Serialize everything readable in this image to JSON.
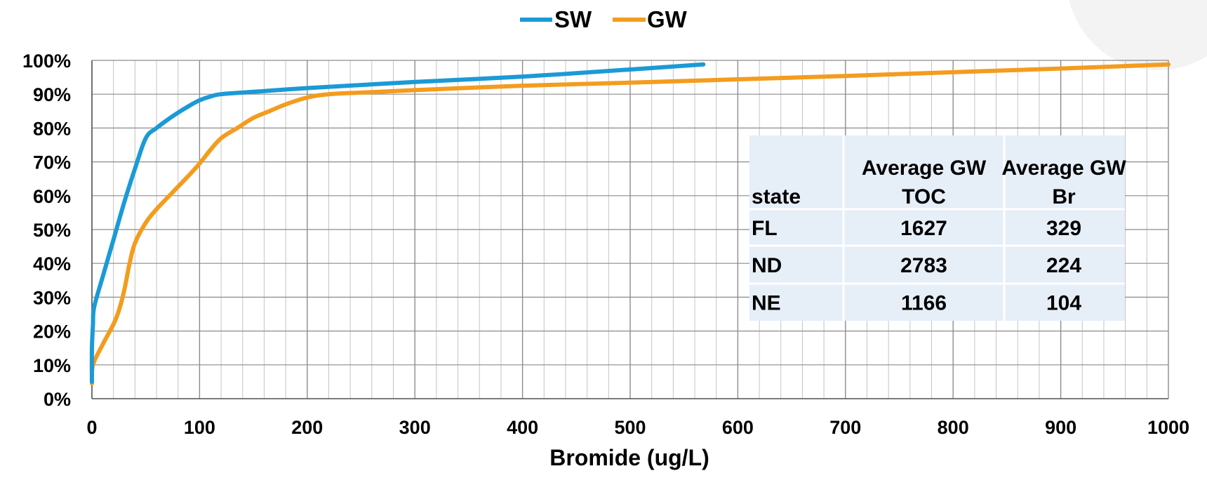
{
  "chart_data": {
    "type": "line",
    "title": "",
    "xlabel": "Bromide (ug/L)",
    "ylabel": "",
    "xlim": [
      0,
      1000
    ],
    "ylim": [
      0,
      100
    ],
    "x_ticks": [
      "0",
      "100",
      "200",
      "300",
      "400",
      "500",
      "600",
      "700",
      "800",
      "900",
      "1000"
    ],
    "y_ticks": [
      "0%",
      "10%",
      "20%",
      "30%",
      "40%",
      "50%",
      "60%",
      "70%",
      "80%",
      "90%",
      "100%"
    ],
    "grid": true,
    "legend_position": "top-center",
    "series": [
      {
        "name": "SW",
        "color": "#1B9AD6",
        "points": [
          [
            0,
            5
          ],
          [
            0,
            15
          ],
          [
            1,
            22
          ],
          [
            2,
            27
          ],
          [
            10,
            36
          ],
          [
            20,
            47
          ],
          [
            30,
            58
          ],
          [
            40,
            68
          ],
          [
            50,
            77
          ],
          [
            60,
            80
          ],
          [
            75,
            83.5
          ],
          [
            90,
            86.5
          ],
          [
            100,
            88.2
          ],
          [
            110,
            89.3
          ],
          [
            120,
            90
          ],
          [
            150,
            90.7
          ],
          [
            200,
            91.8
          ],
          [
            300,
            93.6
          ],
          [
            400,
            95.2
          ],
          [
            500,
            97.3
          ],
          [
            568,
            98.8
          ]
        ]
      },
      {
        "name": "GW",
        "color": "#F39C1E",
        "points": [
          [
            0,
            4.5
          ],
          [
            1,
            10
          ],
          [
            10,
            16
          ],
          [
            20,
            22
          ],
          [
            25,
            26
          ],
          [
            30,
            32
          ],
          [
            35,
            40
          ],
          [
            40,
            46
          ],
          [
            50,
            52
          ],
          [
            60,
            56
          ],
          [
            75,
            61
          ],
          [
            90,
            66
          ],
          [
            100,
            69.5
          ],
          [
            110,
            73.5
          ],
          [
            120,
            77
          ],
          [
            135,
            80
          ],
          [
            150,
            83
          ],
          [
            165,
            85
          ],
          [
            180,
            87
          ],
          [
            200,
            89
          ],
          [
            220,
            90
          ],
          [
            260,
            90.6
          ],
          [
            300,
            91.2
          ],
          [
            400,
            92.5
          ],
          [
            500,
            93.4
          ],
          [
            600,
            94.4
          ],
          [
            700,
            95.4
          ],
          [
            800,
            96.5
          ],
          [
            900,
            97.6
          ],
          [
            1000,
            98.8
          ]
        ]
      }
    ],
    "table": {
      "headers": [
        "state",
        "Average GW TOC",
        "Average GW Br"
      ],
      "rows": [
        [
          "FL",
          "1627",
          "329"
        ],
        [
          "ND",
          "2783",
          "224"
        ],
        [
          "NE",
          "1166",
          "104"
        ]
      ]
    }
  },
  "colors": {
    "sw": "#1B9AD6",
    "gw": "#F39C1E",
    "grid": "#9a9a9a",
    "table_bg": "#E6EEF8"
  }
}
